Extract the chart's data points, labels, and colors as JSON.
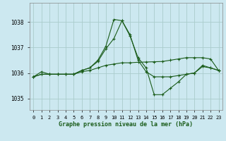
{
  "bg_color": "#cce8f0",
  "grid_color": "#aacccc",
  "line_color": "#1a5c1a",
  "line1_y": [
    1035.85,
    1036.05,
    1035.95,
    1035.95,
    1035.95,
    1035.95,
    1036.1,
    1036.2,
    1036.5,
    1037.05,
    1038.1,
    1038.05,
    1037.45,
    1036.6,
    1036.2,
    1035.15,
    1035.15,
    1035.4,
    1035.65,
    1035.95,
    1036.0,
    1036.3,
    1036.2,
    1036.1
  ],
  "line2_y": [
    1035.85,
    1035.95,
    1035.95,
    1035.95,
    1035.95,
    1035.95,
    1036.1,
    1036.2,
    1036.45,
    1036.95,
    1037.35,
    1038.05,
    1037.5,
    1036.5,
    1036.05,
    1035.85,
    1035.85,
    1035.85,
    1035.9,
    1035.95,
    1036.0,
    1036.25,
    1036.2,
    1036.1
  ],
  "line3_y": [
    1035.85,
    1035.95,
    1035.95,
    1035.95,
    1035.95,
    1035.95,
    1036.05,
    1036.1,
    1036.2,
    1036.3,
    1036.35,
    1036.4,
    1036.4,
    1036.42,
    1036.43,
    1036.44,
    1036.45,
    1036.5,
    1036.55,
    1036.6,
    1036.6,
    1036.6,
    1036.55,
    1036.1
  ],
  "xlim": [
    -0.5,
    23.5
  ],
  "ylim": [
    1034.55,
    1038.75
  ],
  "yticks": [
    1035,
    1036,
    1037,
    1038
  ],
  "xticks": [
    0,
    1,
    2,
    3,
    4,
    5,
    6,
    7,
    8,
    9,
    10,
    11,
    12,
    13,
    14,
    15,
    16,
    17,
    18,
    19,
    20,
    21,
    22,
    23
  ],
  "xlabel": "Graphe pression niveau de la mer (hPa)",
  "marker": "+",
  "markersize": 3,
  "linewidth": 0.8
}
